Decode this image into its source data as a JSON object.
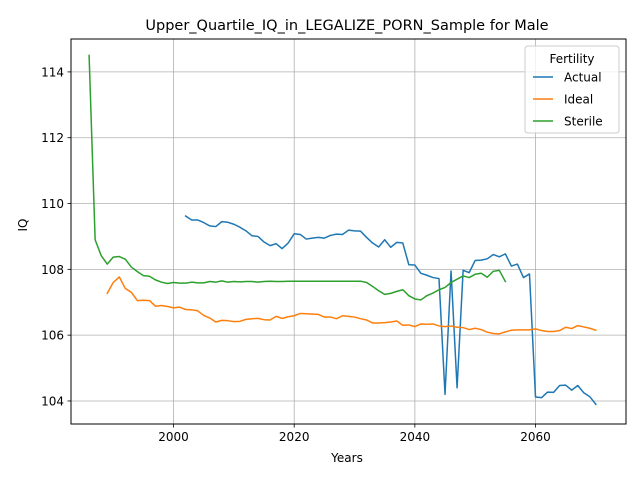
{
  "chart_data": {
    "type": "line",
    "title": "Upper_Quartile_IQ_in_LEGALIZE_PORN_Sample for Male",
    "xlabel": "Years",
    "ylabel": "IQ",
    "xlim": [
      1983,
      2075
    ],
    "ylim": [
      103.3,
      115.0
    ],
    "xticks": [
      2000,
      2020,
      2040,
      2060
    ],
    "yticks": [
      104,
      106,
      108,
      110,
      112,
      114
    ],
    "grid": true,
    "legend": {
      "title": "Fertility",
      "placement": "top-right"
    },
    "series": [
      {
        "name": "Actual",
        "color": "#1f77b4",
        "points": [
          [
            2002,
            109.62
          ],
          [
            2003,
            109.5
          ],
          [
            2004,
            109.5
          ],
          [
            2005,
            109.42
          ],
          [
            2006,
            109.32
          ],
          [
            2007,
            109.3
          ],
          [
            2008,
            109.45
          ],
          [
            2009,
            109.43
          ],
          [
            2010,
            109.37
          ],
          [
            2011,
            109.28
          ],
          [
            2012,
            109.17
          ],
          [
            2013,
            109.02
          ],
          [
            2014,
            109.0
          ],
          [
            2015,
            108.83
          ],
          [
            2016,
            108.72
          ],
          [
            2017,
            108.78
          ],
          [
            2018,
            108.63
          ],
          [
            2019,
            108.8
          ],
          [
            2020,
            109.08
          ],
          [
            2021,
            109.06
          ],
          [
            2022,
            108.92
          ],
          [
            2023,
            108.95
          ],
          [
            2024,
            108.97
          ],
          [
            2025,
            108.95
          ],
          [
            2026,
            109.03
          ],
          [
            2027,
            109.07
          ],
          [
            2028,
            109.06
          ],
          [
            2029,
            109.19
          ],
          [
            2030,
            109.17
          ],
          [
            2031,
            109.16
          ],
          [
            2032,
            108.97
          ],
          [
            2033,
            108.8
          ],
          [
            2034,
            108.68
          ],
          [
            2035,
            108.9
          ],
          [
            2036,
            108.67
          ],
          [
            2037,
            108.82
          ],
          [
            2038,
            108.8
          ],
          [
            2039,
            108.14
          ],
          [
            2040,
            108.13
          ],
          [
            2041,
            107.88
          ],
          [
            2042,
            107.82
          ],
          [
            2043,
            107.75
          ],
          [
            2044,
            107.72
          ],
          [
            2045,
            104.2
          ],
          [
            2046,
            107.95
          ],
          [
            2047,
            104.4
          ],
          [
            2048,
            107.97
          ],
          [
            2049,
            107.9
          ],
          [
            2050,
            108.27
          ],
          [
            2051,
            108.28
          ],
          [
            2052,
            108.32
          ],
          [
            2053,
            108.45
          ],
          [
            2054,
            108.38
          ],
          [
            2055,
            108.47
          ],
          [
            2056,
            108.1
          ],
          [
            2057,
            108.16
          ],
          [
            2058,
            107.75
          ],
          [
            2059,
            107.86
          ],
          [
            2060,
            104.12
          ],
          [
            2061,
            104.1
          ],
          [
            2062,
            104.27
          ],
          [
            2063,
            104.26
          ],
          [
            2064,
            104.47
          ],
          [
            2065,
            104.48
          ],
          [
            2066,
            104.33
          ],
          [
            2067,
            104.47
          ],
          [
            2068,
            104.25
          ],
          [
            2069,
            104.13
          ],
          [
            2070,
            103.9
          ]
        ]
      },
      {
        "name": "Ideal",
        "color": "#ff7f0e",
        "points": [
          [
            1989,
            107.27
          ],
          [
            1990,
            107.6
          ],
          [
            1991,
            107.77
          ],
          [
            1992,
            107.42
          ],
          [
            1993,
            107.3
          ],
          [
            1994,
            107.05
          ],
          [
            1995,
            107.06
          ],
          [
            1996,
            107.05
          ],
          [
            1997,
            106.88
          ],
          [
            1998,
            106.9
          ],
          [
            1999,
            106.87
          ],
          [
            2000,
            106.83
          ],
          [
            2001,
            106.85
          ],
          [
            2002,
            106.78
          ],
          [
            2003,
            106.77
          ],
          [
            2004,
            106.74
          ],
          [
            2005,
            106.6
          ],
          [
            2006,
            106.52
          ],
          [
            2007,
            106.4
          ],
          [
            2008,
            106.45
          ],
          [
            2009,
            106.44
          ],
          [
            2010,
            106.41
          ],
          [
            2011,
            106.42
          ],
          [
            2012,
            106.48
          ],
          [
            2013,
            106.5
          ],
          [
            2014,
            106.51
          ],
          [
            2015,
            106.47
          ],
          [
            2016,
            106.46
          ],
          [
            2017,
            106.57
          ],
          [
            2018,
            106.51
          ],
          [
            2019,
            106.56
          ],
          [
            2020,
            106.59
          ],
          [
            2021,
            106.66
          ],
          [
            2022,
            106.65
          ],
          [
            2023,
            106.64
          ],
          [
            2024,
            106.63
          ],
          [
            2025,
            106.55
          ],
          [
            2026,
            106.55
          ],
          [
            2027,
            106.5
          ],
          [
            2028,
            106.59
          ],
          [
            2029,
            106.57
          ],
          [
            2030,
            106.55
          ],
          [
            2031,
            106.5
          ],
          [
            2032,
            106.46
          ],
          [
            2033,
            106.37
          ],
          [
            2034,
            106.37
          ],
          [
            2035,
            106.38
          ],
          [
            2036,
            106.4
          ],
          [
            2037,
            106.43
          ],
          [
            2038,
            106.3
          ],
          [
            2039,
            106.31
          ],
          [
            2040,
            106.26
          ],
          [
            2041,
            106.34
          ],
          [
            2042,
            106.33
          ],
          [
            2043,
            106.34
          ],
          [
            2044,
            106.28
          ],
          [
            2045,
            106.26
          ],
          [
            2046,
            106.28
          ],
          [
            2047,
            106.24
          ],
          [
            2048,
            106.23
          ],
          [
            2049,
            106.17
          ],
          [
            2050,
            106.21
          ],
          [
            2051,
            106.17
          ],
          [
            2052,
            106.09
          ],
          [
            2053,
            106.05
          ],
          [
            2054,
            106.04
          ],
          [
            2055,
            106.1
          ],
          [
            2056,
            106.15
          ],
          [
            2057,
            106.16
          ],
          [
            2058,
            106.16
          ],
          [
            2059,
            106.16
          ],
          [
            2060,
            106.19
          ],
          [
            2061,
            106.14
          ],
          [
            2062,
            106.11
          ],
          [
            2063,
            106.11
          ],
          [
            2064,
            106.14
          ],
          [
            2065,
            106.24
          ],
          [
            2066,
            106.2
          ],
          [
            2067,
            106.29
          ],
          [
            2068,
            106.25
          ],
          [
            2069,
            106.21
          ],
          [
            2070,
            106.15
          ]
        ]
      },
      {
        "name": "Sterile",
        "color": "#2ca02c",
        "points": [
          [
            1986,
            114.5
          ],
          [
            1987,
            108.9
          ],
          [
            1988,
            108.42
          ],
          [
            1989,
            108.16
          ],
          [
            1990,
            108.37
          ],
          [
            1991,
            108.39
          ],
          [
            1992,
            108.31
          ],
          [
            1993,
            108.07
          ],
          [
            1994,
            107.93
          ],
          [
            1995,
            107.81
          ],
          [
            1996,
            107.79
          ],
          [
            1997,
            107.68
          ],
          [
            1998,
            107.61
          ],
          [
            1999,
            107.57
          ],
          [
            2000,
            107.6
          ],
          [
            2001,
            107.58
          ],
          [
            2002,
            107.58
          ],
          [
            2003,
            107.61
          ],
          [
            2004,
            107.59
          ],
          [
            2005,
            107.59
          ],
          [
            2006,
            107.63
          ],
          [
            2007,
            107.61
          ],
          [
            2008,
            107.65
          ],
          [
            2009,
            107.61
          ],
          [
            2010,
            107.63
          ],
          [
            2011,
            107.62
          ],
          [
            2012,
            107.63
          ],
          [
            2013,
            107.63
          ],
          [
            2014,
            107.61
          ],
          [
            2015,
            107.63
          ],
          [
            2016,
            107.64
          ],
          [
            2017,
            107.63
          ],
          [
            2018,
            107.63
          ],
          [
            2019,
            107.64
          ],
          [
            2020,
            107.64
          ],
          [
            2021,
            107.64
          ],
          [
            2022,
            107.64
          ],
          [
            2023,
            107.64
          ],
          [
            2024,
            107.64
          ],
          [
            2025,
            107.64
          ],
          [
            2026,
            107.64
          ],
          [
            2027,
            107.64
          ],
          [
            2028,
            107.64
          ],
          [
            2029,
            107.64
          ],
          [
            2030,
            107.64
          ],
          [
            2031,
            107.64
          ],
          [
            2032,
            107.6
          ],
          [
            2033,
            107.48
          ],
          [
            2034,
            107.35
          ],
          [
            2035,
            107.24
          ],
          [
            2036,
            107.27
          ],
          [
            2037,
            107.33
          ],
          [
            2038,
            107.38
          ],
          [
            2039,
            107.2
          ],
          [
            2040,
            107.1
          ],
          [
            2041,
            107.07
          ],
          [
            2042,
            107.2
          ],
          [
            2043,
            107.28
          ],
          [
            2044,
            107.38
          ],
          [
            2045,
            107.45
          ],
          [
            2046,
            107.6
          ],
          [
            2047,
            107.7
          ],
          [
            2048,
            107.8
          ],
          [
            2049,
            107.75
          ],
          [
            2050,
            107.85
          ],
          [
            2051,
            107.88
          ],
          [
            2052,
            107.76
          ],
          [
            2053,
            107.94
          ],
          [
            2054,
            107.97
          ],
          [
            2055,
            107.63
          ]
        ]
      }
    ]
  }
}
